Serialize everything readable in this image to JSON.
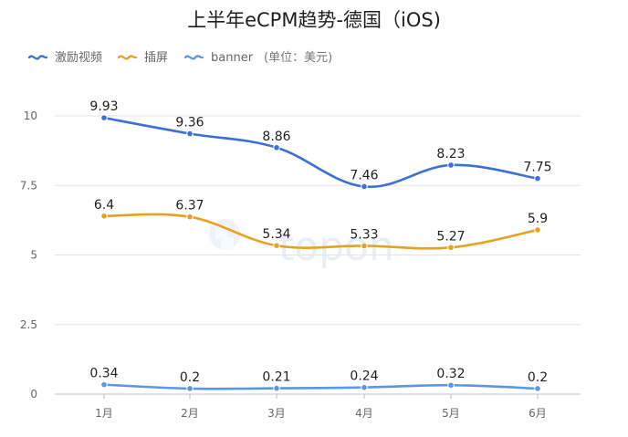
{
  "chart_data": {
    "type": "line",
    "title": "上半年eCPM趋势-德国（iOS)",
    "unit_note": "(单位：美元)",
    "watermark": "topon",
    "categories": [
      "1月",
      "2月",
      "3月",
      "4月",
      "5月",
      "6月"
    ],
    "ylim": [
      0,
      10
    ],
    "yticks": [
      0,
      2.5,
      5,
      7.5,
      10
    ],
    "ytick_labels": [
      "0",
      "2.5",
      "5",
      "7.5",
      "10"
    ],
    "grid": true,
    "legend_position": "top-left",
    "series": [
      {
        "name": "激励视频",
        "color": "#3D6FD8",
        "values": [
          9.93,
          9.36,
          8.86,
          7.46,
          8.23,
          7.75
        ],
        "labels": [
          "9.93",
          "9.36",
          "8.86",
          "7.46",
          "8.23",
          "7.75"
        ]
      },
      {
        "name": "插屏",
        "color": "#E5A222",
        "values": [
          6.4,
          6.37,
          5.34,
          5.33,
          5.27,
          5.9
        ],
        "labels": [
          "6.4",
          "6.37",
          "5.34",
          "5.33",
          "5.27",
          "5.9"
        ]
      },
      {
        "name": "banner",
        "color": "#5E96E3",
        "values": [
          0.34,
          0.2,
          0.21,
          0.24,
          0.32,
          0.2
        ],
        "labels": [
          "0.34",
          "0.2",
          "0.21",
          "0.24",
          "0.32",
          "0.2"
        ]
      }
    ]
  }
}
